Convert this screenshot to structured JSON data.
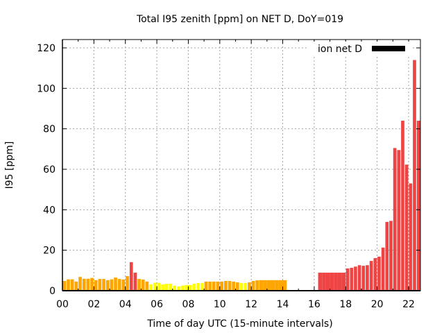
{
  "chart_data": {
    "type": "bar",
    "title": "Total I95 zenith [ppm] on NET D, DoY=019",
    "xlabel": "Time of day UTC (15-minute intervals)",
    "ylabel": "I95 [ppm]",
    "xlim": [
      0,
      22.75
    ],
    "ylim": [
      0,
      120
    ],
    "grid": true,
    "x_ticks": [
      "00",
      "02",
      "04",
      "06",
      "08",
      "10",
      "12",
      "14",
      "16",
      "18",
      "20",
      "22"
    ],
    "x_tick_values": [
      0,
      2,
      4,
      6,
      8,
      10,
      12,
      14,
      16,
      18,
      20,
      22
    ],
    "y_ticks": [
      "0",
      "20",
      "40",
      "60",
      "80",
      "100",
      "120"
    ],
    "y_tick_values": [
      0,
      20,
      40,
      60,
      80,
      100,
      120
    ],
    "interval_hours": 0.25,
    "legend": {
      "placement": "top-right",
      "entries": [
        {
          "label": "ion net D",
          "color": "#000000"
        }
      ]
    },
    "color_scale": [
      {
        "below": 4,
        "color": "#ffff00"
      },
      {
        "below": 8,
        "color": "#ffa500"
      },
      {
        "below": 1000,
        "color": "#ee4444"
      }
    ],
    "series": [
      {
        "name": "ion net D",
        "start_hour": [
          0,
          0.25,
          0.5,
          0.75,
          1,
          1.25,
          1.5,
          1.75,
          2,
          2.25,
          2.5,
          2.75,
          3,
          3.25,
          3.5,
          3.75,
          4,
          4.25,
          4.5,
          4.75,
          5,
          5.25,
          5.5,
          5.75,
          6,
          6.25,
          6.5,
          6.75,
          7,
          7.25,
          7.5,
          7.75,
          8,
          8.25,
          8.5,
          8.75,
          9,
          9.25,
          9.5,
          9.75,
          10,
          10.25,
          10.5,
          10.75,
          11,
          11.25,
          11.5,
          11.75,
          12,
          12.25,
          12.5,
          12.75,
          13,
          13.25,
          13.5,
          13.75,
          14,
          16.25,
          16.5,
          16.75,
          17,
          17.25,
          17.5,
          17.75,
          18,
          18.25,
          18.5,
          18.75,
          19,
          19.25,
          19.5,
          19.75,
          20,
          20.25,
          20.5,
          20.75,
          21,
          21.25,
          21.5,
          21.75,
          22,
          22.25,
          22.5
        ],
        "values": [
          4.8,
          5.6,
          5.6,
          4.5,
          6.8,
          5.9,
          5.9,
          6.3,
          5.2,
          5.8,
          5.8,
          5.2,
          5.6,
          6.5,
          5.8,
          5.5,
          7.2,
          14.1,
          8.9,
          5.8,
          5.5,
          4.5,
          3.1,
          3.9,
          3.9,
          3.1,
          3.4,
          3.4,
          2.5,
          2.1,
          2.5,
          2.8,
          2.8,
          3.4,
          3.8,
          3.8,
          4.5,
          4.5,
          4.5,
          4.5,
          4.5,
          4.8,
          4.8,
          4.5,
          4.1,
          3.8,
          3.8,
          4.1,
          4.8,
          5.1,
          5.2,
          5.2,
          5.2,
          5.2,
          5.2,
          5.2,
          5.2,
          8.9,
          8.9,
          8.9,
          8.9,
          8.9,
          8.9,
          8.9,
          11.0,
          11.3,
          11.9,
          12.6,
          12.3,
          12.6,
          14.7,
          16.1,
          16.8,
          21.3,
          34.0,
          34.5,
          70.5,
          69.5,
          84.0,
          62.3,
          53.0,
          114.0,
          84.0
        ],
        "merged_blocks": [
          {
            "from_hour": 12.5,
            "to_hour": 14.25,
            "value": 5.2
          },
          {
            "from_hour": 16.25,
            "to_hour": 18.0,
            "value": 8.9
          }
        ]
      }
    ]
  }
}
